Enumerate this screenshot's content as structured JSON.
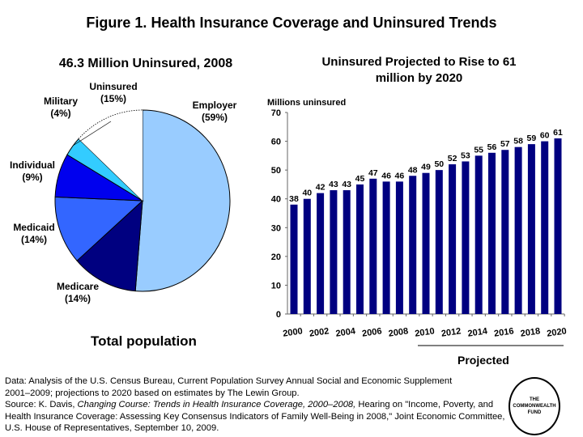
{
  "title": "Figure 1. Health Insurance Coverage and Uninsured Trends",
  "chart_data": [
    {
      "type": "pie",
      "title": "46.3 Million Uninsured, 2008",
      "caption": "Total population",
      "slices": [
        {
          "label": "Employer",
          "pct_label": "(59%)",
          "value": 59,
          "color": "#99CCFF"
        },
        {
          "label": "Medicare",
          "pct_label": "(14%)",
          "value": 14,
          "color": "#000080"
        },
        {
          "label": "Medicaid",
          "pct_label": "(14%)",
          "value": 14,
          "color": "#3366FF"
        },
        {
          "label": "Individual",
          "pct_label": "(9%)",
          "value": 9,
          "color": "#0000EE"
        },
        {
          "label": "Military",
          "pct_label": "(4%)",
          "value": 4,
          "color": "#33CCFF"
        },
        {
          "label": "Uninsured",
          "pct_label": "(15%)",
          "value": 15,
          "color": "#FFFFFF"
        }
      ]
    },
    {
      "type": "bar",
      "title": "Uninsured Projected to Rise to 61 million by 2020",
      "ylabel": "Millions uninsured",
      "ylim": [
        0,
        70
      ],
      "yticks": [
        0,
        10,
        20,
        30,
        40,
        50,
        60,
        70
      ],
      "categories": [
        2000,
        2001,
        2002,
        2003,
        2004,
        2005,
        2006,
        2007,
        2008,
        2009,
        2010,
        2011,
        2012,
        2013,
        2014,
        2015,
        2016,
        2017,
        2018,
        2019,
        2020
      ],
      "xtick_labels": [
        "2000",
        "2002",
        "2004",
        "2006",
        "2008",
        "2010",
        "2012",
        "2014",
        "2016",
        "2018",
        "2020"
      ],
      "values": [
        38,
        40,
        42,
        43,
        43,
        45,
        47,
        46,
        46,
        48,
        49,
        50,
        52,
        53,
        55,
        56,
        57,
        58,
        59,
        60,
        61
      ],
      "bar_color": "#000080",
      "annotation": "Projected",
      "projected_from": 2010
    }
  ],
  "footnote": {
    "data_line1": "Data: Analysis of the U.S. Census Bureau, Current Population Survey Annual Social and Economic Supplement",
    "data_line2": "2001–2009; projections to 2020 based on estimates by The Lewin Group.",
    "source_prefix": "Source: K. Davis, ",
    "source_italic": "Changing Course: Trends in Health Insurance Coverage, 2000–2008,",
    "source_rest": " Hearing on \"Income, Poverty, and Health Insurance Coverage: Assessing Key Consensus Indicators of Family Well-Being in 2008,\" Joint Economic Committee, U.S. House of Representatives, September 10, 2009."
  },
  "logo": {
    "line1": "THE",
    "line2": "COMMONWEALTH",
    "line3": "FUND"
  }
}
